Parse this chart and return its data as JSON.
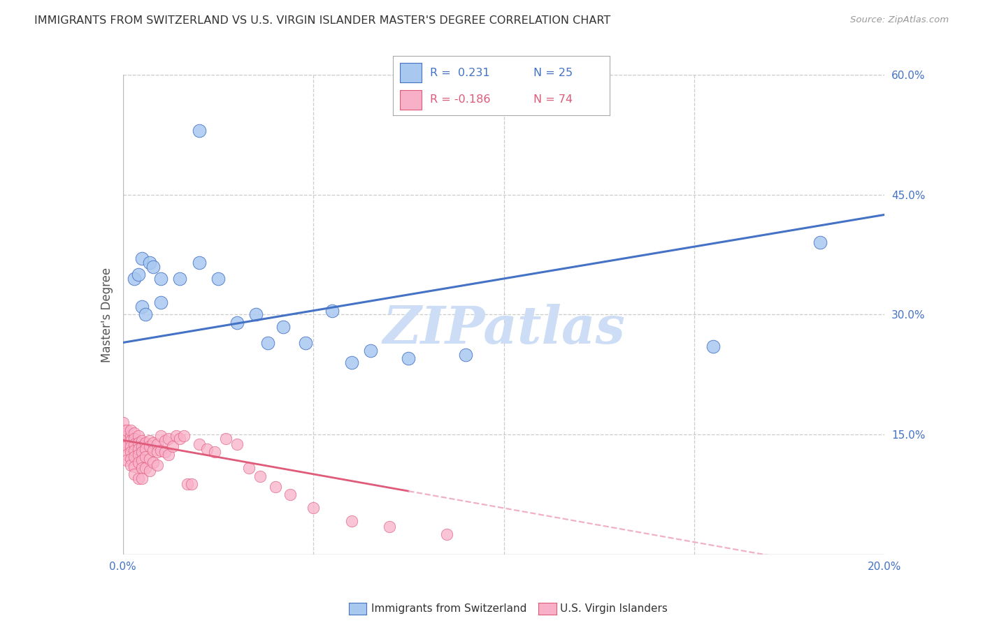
{
  "title": "IMMIGRANTS FROM SWITZERLAND VS U.S. VIRGIN ISLANDER MASTER'S DEGREE CORRELATION CHART",
  "source": "Source: ZipAtlas.com",
  "ylabel": "Master's Degree",
  "xlim": [
    0.0,
    0.2
  ],
  "ylim": [
    0.0,
    0.6
  ],
  "grid_color": "#cccccc",
  "background_color": "#ffffff",
  "series1_color": "#a8c8f0",
  "series2_color": "#f8b0c8",
  "series1_line_color": "#4472C4",
  "series2_line_color": "#e05a7a",
  "series2_line_dashed_color": "#f0b0c8",
  "watermark": "ZIPatlas",
  "watermark_color": "#ccddf5",
  "legend_r1": "R =  0.231",
  "legend_n1": "N = 25",
  "legend_r2": "R = -0.186",
  "legend_n2": "N = 74",
  "series1_label": "Immigrants from Switzerland",
  "series2_label": "U.S. Virgin Islanders",
  "series1_line_intercept": 0.265,
  "series1_line_slope": 0.8,
  "series2_line_intercept": 0.143,
  "series2_line_slope": -0.85,
  "series1_x": [
    0.02,
    0.003,
    0.005,
    0.007,
    0.004,
    0.008,
    0.005,
    0.01,
    0.006,
    0.01,
    0.015,
    0.02,
    0.025,
    0.03,
    0.035,
    0.038,
    0.042,
    0.048,
    0.055,
    0.06,
    0.065,
    0.075,
    0.09,
    0.155,
    0.183
  ],
  "series1_y": [
    0.53,
    0.345,
    0.37,
    0.365,
    0.35,
    0.36,
    0.31,
    0.345,
    0.3,
    0.315,
    0.345,
    0.365,
    0.345,
    0.29,
    0.3,
    0.265,
    0.285,
    0.265,
    0.305,
    0.24,
    0.255,
    0.245,
    0.25,
    0.26,
    0.39
  ],
  "series2_x": [
    0.0,
    0.0,
    0.0,
    0.001,
    0.001,
    0.001,
    0.001,
    0.001,
    0.001,
    0.002,
    0.002,
    0.002,
    0.002,
    0.002,
    0.002,
    0.002,
    0.003,
    0.003,
    0.003,
    0.003,
    0.003,
    0.003,
    0.003,
    0.004,
    0.004,
    0.004,
    0.004,
    0.004,
    0.004,
    0.005,
    0.005,
    0.005,
    0.005,
    0.005,
    0.005,
    0.006,
    0.006,
    0.006,
    0.006,
    0.007,
    0.007,
    0.007,
    0.007,
    0.008,
    0.008,
    0.008,
    0.009,
    0.009,
    0.009,
    0.01,
    0.01,
    0.011,
    0.011,
    0.012,
    0.012,
    0.013,
    0.014,
    0.015,
    0.016,
    0.017,
    0.018,
    0.02,
    0.022,
    0.024,
    0.027,
    0.03,
    0.033,
    0.036,
    0.04,
    0.044,
    0.05,
    0.06,
    0.07,
    0.085
  ],
  "series2_y": [
    0.145,
    0.155,
    0.165,
    0.14,
    0.148,
    0.155,
    0.135,
    0.125,
    0.118,
    0.148,
    0.155,
    0.142,
    0.135,
    0.128,
    0.12,
    0.112,
    0.152,
    0.145,
    0.138,
    0.13,
    0.122,
    0.11,
    0.1,
    0.148,
    0.14,
    0.132,
    0.125,
    0.115,
    0.095,
    0.142,
    0.135,
    0.128,
    0.118,
    0.108,
    0.095,
    0.14,
    0.132,
    0.122,
    0.108,
    0.142,
    0.135,
    0.12,
    0.105,
    0.14,
    0.13,
    0.115,
    0.138,
    0.128,
    0.112,
    0.148,
    0.13,
    0.142,
    0.128,
    0.145,
    0.125,
    0.135,
    0.148,
    0.145,
    0.148,
    0.088,
    0.088,
    0.138,
    0.132,
    0.128,
    0.145,
    0.138,
    0.108,
    0.098,
    0.085,
    0.075,
    0.058,
    0.042,
    0.035,
    0.025
  ]
}
